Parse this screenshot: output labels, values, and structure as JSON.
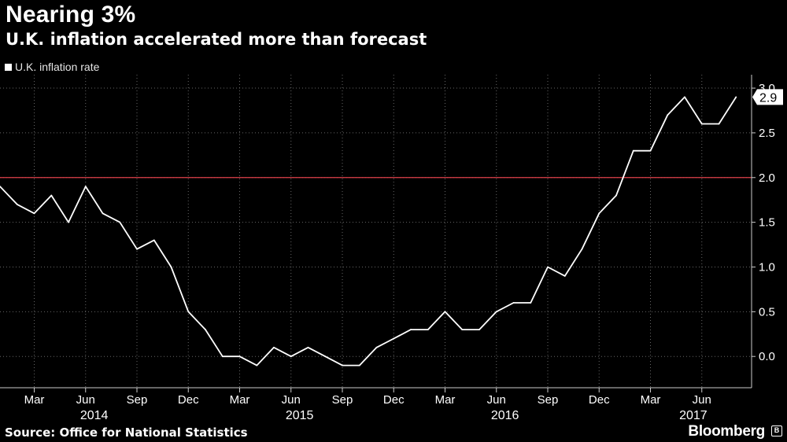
{
  "title": "Nearing 3%",
  "subtitle": "U.K. inflation accelerated more than forecast",
  "source": "Source: Office for National Statistics",
  "brand": "Bloomberg",
  "brand_icon": "bloomberg-logo-icon",
  "colors": {
    "background": "#000000",
    "line": "#ffffff",
    "reference": "#e0404a",
    "grid": "#666666"
  },
  "chart_data": {
    "type": "line",
    "title": "Nearing 3%",
    "subtitle": "U.K. inflation accelerated more than forecast",
    "x_start": "2014-01",
    "x": [
      "2014-01",
      "2014-02",
      "2014-03",
      "2014-04",
      "2014-05",
      "2014-06",
      "2014-07",
      "2014-08",
      "2014-09",
      "2014-10",
      "2014-11",
      "2014-12",
      "2015-01",
      "2015-02",
      "2015-03",
      "2015-04",
      "2015-05",
      "2015-06",
      "2015-07",
      "2015-08",
      "2015-09",
      "2015-10",
      "2015-11",
      "2015-12",
      "2016-01",
      "2016-02",
      "2016-03",
      "2016-04",
      "2016-05",
      "2016-06",
      "2016-07",
      "2016-08",
      "2016-09",
      "2016-10",
      "2016-11",
      "2016-12",
      "2017-01",
      "2017-02",
      "2017-03",
      "2017-04",
      "2017-05",
      "2017-06",
      "2017-07",
      "2017-08"
    ],
    "series": [
      {
        "name": "U.K. inflation rate",
        "values": [
          1.9,
          1.7,
          1.6,
          1.8,
          1.5,
          1.9,
          1.6,
          1.5,
          1.2,
          1.3,
          1.0,
          0.5,
          0.3,
          0.0,
          0.0,
          -0.1,
          0.1,
          0.0,
          0.1,
          0.0,
          -0.1,
          -0.1,
          0.1,
          0.2,
          0.3,
          0.3,
          0.5,
          0.3,
          0.3,
          0.5,
          0.6,
          0.6,
          1.0,
          0.9,
          1.2,
          1.6,
          1.8,
          2.3,
          2.3,
          2.7,
          2.9,
          2.6,
          2.6,
          2.9
        ]
      }
    ],
    "reference_line": 2.0,
    "last_value_label": "2.9",
    "y_ticks": [
      "3.0",
      "2.5",
      "2.0",
      "1.5",
      "1.0",
      "0.5",
      "0.0"
    ],
    "y_tick_values": [
      3.0,
      2.5,
      2.0,
      1.5,
      1.0,
      0.5,
      0.0
    ],
    "ylim": [
      -0.35,
      3.15
    ],
    "month_ticks": [
      {
        "label": "Mar",
        "x": "2014-03"
      },
      {
        "label": "Jun",
        "x": "2014-06"
      },
      {
        "label": "Sep",
        "x": "2014-09"
      },
      {
        "label": "Dec",
        "x": "2014-12"
      },
      {
        "label": "Mar",
        "x": "2015-03"
      },
      {
        "label": "Jun",
        "x": "2015-06"
      },
      {
        "label": "Sep",
        "x": "2015-09"
      },
      {
        "label": "Dec",
        "x": "2015-12"
      },
      {
        "label": "Mar",
        "x": "2016-03"
      },
      {
        "label": "Jun",
        "x": "2016-06"
      },
      {
        "label": "Sep",
        "x": "2016-09"
      },
      {
        "label": "Dec",
        "x": "2016-12"
      },
      {
        "label": "Mar",
        "x": "2017-03"
      },
      {
        "label": "Jun",
        "x": "2017-06"
      }
    ],
    "year_labels": [
      {
        "label": "2014",
        "x": "2014-06"
      },
      {
        "label": "2015",
        "x": "2015-06"
      },
      {
        "label": "2016",
        "x": "2016-06"
      },
      {
        "label": "2017",
        "x": "2017-05"
      }
    ],
    "grid": true,
    "legend": "top-left",
    "axis_side": "right"
  }
}
